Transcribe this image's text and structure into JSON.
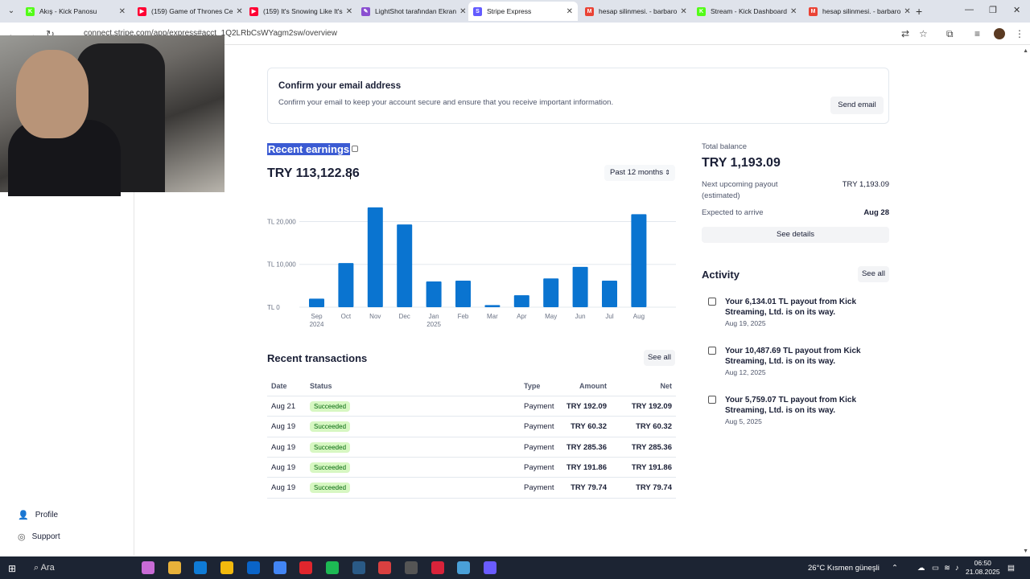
{
  "browser": {
    "tabs": [
      {
        "label": "Akış - Kick Panosu",
        "fav_color": "#53fc18",
        "fav_glyph": "K"
      },
      {
        "label": "(159) Game of Thrones Ce",
        "fav_color": "#ff0033",
        "fav_glyph": "▶"
      },
      {
        "label": "(159) It's Snowing Like It's",
        "fav_color": "#ff0033",
        "fav_glyph": "▶"
      },
      {
        "label": "LightShot tarafından Ekran",
        "fav_color": "#8a4fd1",
        "fav_glyph": "✎"
      },
      {
        "label": "Stripe Express",
        "fav_color": "#635bff",
        "fav_glyph": "S",
        "active": true
      },
      {
        "label": "hesap silinmesi. - barbaro",
        "fav_color": "#ea4335",
        "fav_glyph": "M"
      },
      {
        "label": "Stream - Kick Dashboard",
        "fav_color": "#53fc18",
        "fav_glyph": "K"
      },
      {
        "label": "hesap silinmesi. - barbaro",
        "fav_color": "#ea4335",
        "fav_glyph": "M"
      }
    ],
    "url": "connect.stripe.com/app/express#acct_1Q2LRbCsWYagm2sw/overview"
  },
  "sidebar": {
    "items": [
      {
        "label": "Profile",
        "icon": "person-icon"
      },
      {
        "label": "Support",
        "icon": "support-icon"
      }
    ]
  },
  "banner": {
    "title": "Confirm your email address",
    "text": "Confirm your email to keep your account secure and ensure that you receive important information.",
    "button": "Send email"
  },
  "earnings": {
    "title": "Recent earnings",
    "total": "TRY 113,122.86",
    "period": "Past 12 months"
  },
  "chart_data": {
    "type": "bar",
    "categories": [
      "Sep",
      "Oct",
      "Nov",
      "Dec",
      "Jan",
      "Feb",
      "Mar",
      "Apr",
      "May",
      "Jun",
      "Jul",
      "Aug"
    ],
    "category_sublabels": [
      "2024",
      "",
      "",
      "",
      "2025",
      "",
      "",
      "",
      "",
      "",
      "",
      ""
    ],
    "values": [
      2000,
      10300,
      23300,
      19300,
      6000,
      6200,
      500,
      2800,
      6700,
      9400,
      6200,
      21700
    ],
    "yticks": [
      0,
      10000,
      20000
    ],
    "ytick_labels": [
      "TL 0",
      "TL 10,000",
      "TL 20,000"
    ],
    "ylim": [
      0,
      20000
    ],
    "bar_color": "#0a74d0"
  },
  "balance": {
    "label": "Total balance",
    "value": "TRY 1,193.09",
    "next_payout_label": "Next upcoming payout",
    "next_payout_sub": "(estimated)",
    "next_payout_value": "TRY 1,193.09",
    "expected_label": "Expected to arrive",
    "expected_value": "Aug 28",
    "details_button": "See details"
  },
  "activity": {
    "title": "Activity",
    "see_all": "See all",
    "items": [
      {
        "text": "Your 6,134.01 TL payout from Kick Streaming, Ltd. is on its way.",
        "date": "Aug 19, 2025"
      },
      {
        "text": "Your 10,487.69 TL payout from Kick Streaming, Ltd. is on its way.",
        "date": "Aug 12, 2025"
      },
      {
        "text": "Your 5,759.07 TL payout from Kick Streaming, Ltd. is on its way.",
        "date": "Aug 5, 2025"
      }
    ]
  },
  "transactions": {
    "title": "Recent transactions",
    "see_all": "See all",
    "headers": {
      "date": "Date",
      "status": "Status",
      "type": "Type",
      "amount": "Amount",
      "net": "Net"
    },
    "rows": [
      {
        "date": "Aug 21",
        "status": "Succeeded",
        "type": "Payment",
        "amount": "TRY 192.09",
        "net": "TRY 192.09",
        "net_cur": "TRY"
      },
      {
        "date": "Aug 19",
        "status": "Succeeded",
        "type": "Payment",
        "amount": "TRY 60.32",
        "net": "TRY 60.32",
        "net_cur": "TRY"
      },
      {
        "date": "Aug 19",
        "status": "Succeeded",
        "type": "Payment",
        "amount": "TRY 285.36",
        "net": "TRY 285.36",
        "net_cur": "TRY"
      },
      {
        "date": "Aug 19",
        "status": "Succeeded",
        "type": "Payment",
        "amount": "TRY 191.86",
        "net": "TRY 191.86",
        "net_cur": "TRY"
      },
      {
        "date": "Aug 19",
        "status": "Succeeded",
        "type": "Payment",
        "amount": "TRY 79.74",
        "net": "TRY 79.74",
        "net_cur": "TRY"
      }
    ]
  },
  "taskbar": {
    "search": "Ara",
    "weather": "26°C  Kısmen güneşli",
    "time": "06:50",
    "date": "21.08.2025",
    "apps": [
      "#c86bd6",
      "#e8b13a",
      "#0f7bd6",
      "#f2b90d",
      "#0a64c8",
      "#4285f4",
      "#e0262d",
      "#1db954",
      "#2a5a86",
      "#d94040",
      "#555555",
      "#d8233a",
      "#4aa0d8",
      "#6a5cff"
    ]
  }
}
